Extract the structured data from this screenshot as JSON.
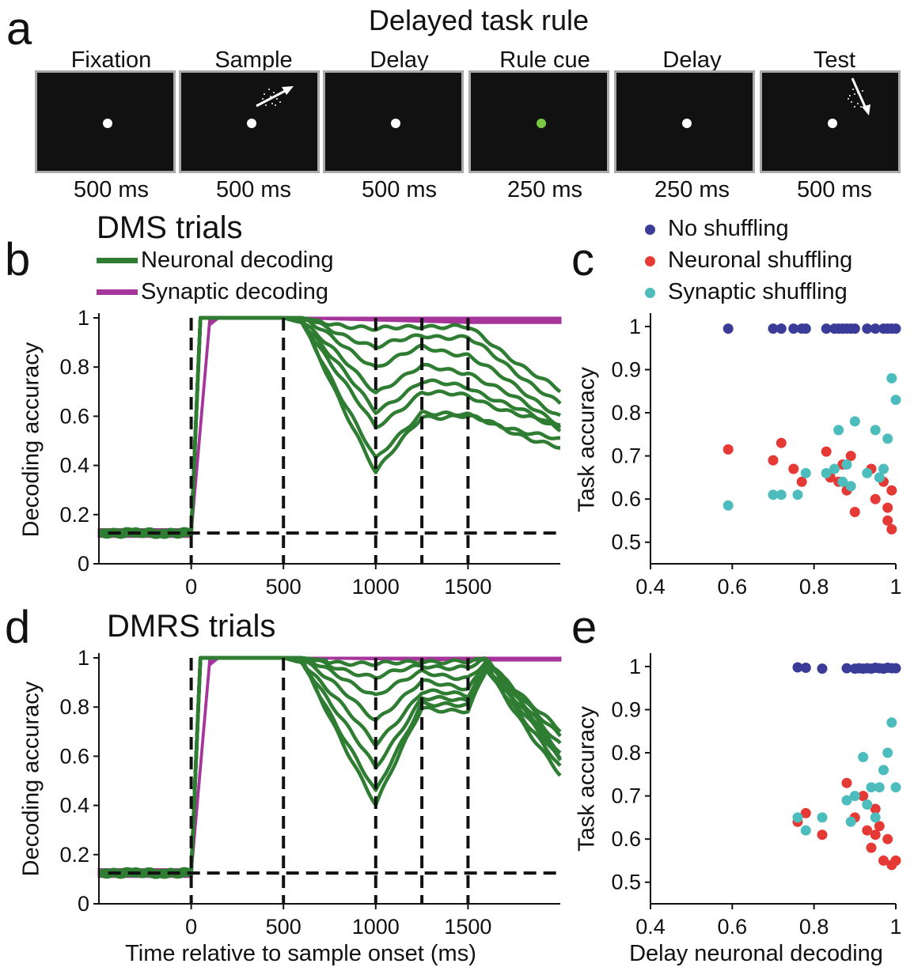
{
  "panel_a": {
    "letter": "a",
    "title": "Delayed task rule",
    "epochs": [
      {
        "name": "Fixation",
        "duration": "500 ms",
        "dot_color": "#ffffff",
        "stimulus": "none"
      },
      {
        "name": "Sample",
        "duration": "500 ms",
        "dot_color": "#ffffff",
        "stimulus": "motion-up-right"
      },
      {
        "name": "Delay",
        "duration": "500 ms",
        "dot_color": "#ffffff",
        "stimulus": "none"
      },
      {
        "name": "Rule cue",
        "duration": "250 ms",
        "dot_color": "#7ac943",
        "stimulus": "none"
      },
      {
        "name": "Delay",
        "duration": "250 ms",
        "dot_color": "#ffffff",
        "stimulus": "none"
      },
      {
        "name": "Test",
        "duration": "500 ms",
        "dot_color": "#ffffff",
        "stimulus": "motion-down-right"
      }
    ]
  },
  "colors": {
    "neuronal": "#2e7d32",
    "synaptic": "#a6359b",
    "no_shuffling": "#3b3b98",
    "neuronal_shuffling": "#e53935",
    "synaptic_shuffling": "#4cbcbc",
    "dashed": "#111111"
  },
  "panel_b": {
    "letter": "b",
    "title": "DMS trials",
    "legend": [
      "Neuronal decoding",
      "Synaptic decoding"
    ],
    "ylabel": "Decoding accuracy"
  },
  "panel_c": {
    "letter": "c",
    "legend": [
      "No shuffling",
      "Neuronal shuffling",
      "Synaptic shuffling"
    ],
    "ylabel": "Task accuracy"
  },
  "panel_d": {
    "letter": "d",
    "title": "DMRS trials",
    "ylabel": "Decoding accuracy",
    "xlabel": "Time relative to sample onset (ms)"
  },
  "panel_e": {
    "letter": "e",
    "ylabel": "Task accuracy",
    "xlabel": "Delay neuronal decoding"
  },
  "chart_data": [
    {
      "id": "b",
      "type": "line",
      "title": "DMS trials",
      "xlabel": "",
      "ylabel": "Decoding accuracy",
      "xlim": [
        -500,
        2000
      ],
      "ylim": [
        0,
        1
      ],
      "xticks": [
        0,
        500,
        1000,
        1500
      ],
      "yticks": [
        0,
        0.2,
        0.4,
        0.6,
        0.8,
        1
      ],
      "chance_level": 0.125,
      "epoch_boundaries": [
        0,
        500,
        1000,
        1250,
        1500
      ],
      "series": [
        {
          "name": "Neuronal decoding",
          "kind": "bundle",
          "x": [
            -500,
            0,
            50,
            100,
            500,
            600,
            1000,
            1250,
            1500,
            2000
          ],
          "curves": [
            [
              0.13,
              0.13,
              1,
              1,
              1,
              0.98,
              0.37,
              0.6,
              0.6,
              0.47
            ],
            [
              0.12,
              0.12,
              1,
              1,
              1,
              0.98,
              0.42,
              0.62,
              0.6,
              0.5
            ],
            [
              0.13,
              0.13,
              1,
              1,
              1,
              0.99,
              0.55,
              0.7,
              0.68,
              0.55
            ],
            [
              0.12,
              0.12,
              1,
              1,
              1,
              0.99,
              0.62,
              0.74,
              0.72,
              0.55
            ],
            [
              0.13,
              0.13,
              1,
              1,
              1,
              0.99,
              0.7,
              0.8,
              0.78,
              0.57
            ],
            [
              0.12,
              0.12,
              1,
              1,
              1,
              1,
              0.8,
              0.88,
              0.85,
              0.6
            ],
            [
              0.13,
              0.13,
              1,
              1,
              1,
              1,
              0.88,
              0.93,
              0.92,
              0.65
            ],
            [
              0.12,
              0.12,
              1,
              1,
              1,
              1,
              0.95,
              0.97,
              0.96,
              0.7
            ]
          ]
        },
        {
          "name": "Synaptic decoding",
          "kind": "band",
          "x": [
            -500,
            0,
            100,
            150,
            500,
            1500,
            2000
          ],
          "lower": [
            0.11,
            0.11,
            0.97,
            1,
            1,
            0.98,
            0.98
          ],
          "upper": [
            0.14,
            0.14,
            1,
            1,
            1,
            1,
            1
          ]
        }
      ]
    },
    {
      "id": "c",
      "type": "scatter",
      "xlabel": "",
      "ylabel": "Task accuracy",
      "xlim": [
        0.4,
        1
      ],
      "ylim": [
        0.45,
        1.02
      ],
      "xticks": [
        0.4,
        0.6,
        0.8,
        1
      ],
      "yticks": [
        0.5,
        0.6,
        0.7,
        0.8,
        0.9,
        1
      ],
      "series": [
        {
          "name": "No shuffling",
          "x": [
            0.59,
            0.7,
            0.72,
            0.75,
            0.77,
            0.78,
            0.83,
            0.85,
            0.86,
            0.87,
            0.88,
            0.89,
            0.9,
            0.93,
            0.95,
            0.97,
            0.98,
            0.99,
            1.0
          ],
          "y": [
            0.995,
            0.995,
            0.995,
            0.995,
            0.995,
            0.995,
            0.995,
            0.995,
            0.995,
            0.995,
            0.995,
            0.995,
            0.995,
            0.995,
            0.995,
            0.995,
            0.995,
            0.995,
            0.995
          ]
        },
        {
          "name": "Neuronal shuffling",
          "x": [
            0.59,
            0.7,
            0.72,
            0.75,
            0.77,
            0.83,
            0.84,
            0.86,
            0.87,
            0.88,
            0.89,
            0.9,
            0.94,
            0.95,
            0.97,
            0.98,
            0.98,
            0.99,
            0.99
          ],
          "y": [
            0.715,
            0.69,
            0.73,
            0.67,
            0.64,
            0.71,
            0.65,
            0.64,
            0.68,
            0.62,
            0.7,
            0.57,
            0.67,
            0.6,
            0.64,
            0.58,
            0.55,
            0.53,
            0.62
          ]
        },
        {
          "name": "Synaptic shuffling",
          "x": [
            0.59,
            0.7,
            0.72,
            0.76,
            0.78,
            0.83,
            0.85,
            0.86,
            0.87,
            0.88,
            0.89,
            0.9,
            0.93,
            0.95,
            0.96,
            0.97,
            0.98,
            0.99,
            1.0
          ],
          "y": [
            0.585,
            0.61,
            0.61,
            0.61,
            0.66,
            0.66,
            0.67,
            0.76,
            0.64,
            0.68,
            0.63,
            0.78,
            0.66,
            0.76,
            0.65,
            0.67,
            0.74,
            0.88,
            0.83
          ]
        }
      ]
    },
    {
      "id": "d",
      "type": "line",
      "title": "DMRS trials",
      "xlabel": "Time relative to sample onset (ms)",
      "ylabel": "Decoding accuracy",
      "xlim": [
        -500,
        2000
      ],
      "ylim": [
        0,
        1
      ],
      "xticks": [
        0,
        500,
        1000,
        1500
      ],
      "yticks": [
        0,
        0.2,
        0.4,
        0.6,
        0.8,
        1
      ],
      "chance_level": 0.125,
      "epoch_boundaries": [
        0,
        500,
        1000,
        1250,
        1500
      ],
      "series": [
        {
          "name": "Neuronal decoding",
          "kind": "bundle",
          "x": [
            -500,
            0,
            50,
            100,
            500,
            600,
            1000,
            1250,
            1500,
            1600,
            2000
          ],
          "curves": [
            [
              0.13,
              0.13,
              1,
              1,
              1,
              0.98,
              0.4,
              0.8,
              0.78,
              0.95,
              0.52
            ],
            [
              0.12,
              0.12,
              1,
              1,
              1,
              0.98,
              0.45,
              0.82,
              0.8,
              0.96,
              0.55
            ],
            [
              0.13,
              0.13,
              1,
              1,
              1,
              0.99,
              0.55,
              0.84,
              0.82,
              0.97,
              0.58
            ],
            [
              0.12,
              0.12,
              1,
              1,
              1,
              0.99,
              0.65,
              0.86,
              0.85,
              0.97,
              0.6
            ],
            [
              0.13,
              0.13,
              1,
              1,
              1,
              1,
              0.75,
              0.9,
              0.88,
              0.98,
              0.62
            ],
            [
              0.12,
              0.12,
              1,
              1,
              1,
              1,
              0.85,
              0.94,
              0.92,
              0.98,
              0.65
            ],
            [
              0.13,
              0.13,
              1,
              1,
              1,
              1,
              0.92,
              0.97,
              0.96,
              0.99,
              0.68
            ],
            [
              0.12,
              0.12,
              1,
              1,
              1,
              1,
              0.97,
              0.99,
              0.98,
              0.99,
              0.7
            ]
          ]
        },
        {
          "name": "Synaptic decoding",
          "kind": "band",
          "x": [
            -500,
            0,
            100,
            150,
            500,
            1500,
            2000
          ],
          "lower": [
            0.11,
            0.11,
            0.97,
            1,
            1,
            0.99,
            0.99
          ],
          "upper": [
            0.14,
            0.14,
            1,
            1,
            1,
            1,
            1
          ]
        }
      ]
    },
    {
      "id": "e",
      "type": "scatter",
      "xlabel": "Delay neuronal decoding",
      "ylabel": "Task accuracy",
      "xlim": [
        0.4,
        1
      ],
      "ylim": [
        0.45,
        1.02
      ],
      "xticks": [
        0.4,
        0.6,
        0.8,
        1
      ],
      "yticks": [
        0.5,
        0.6,
        0.7,
        0.8,
        0.9,
        1
      ],
      "series": [
        {
          "name": "No shuffling",
          "x": [
            0.76,
            0.78,
            0.82,
            0.88,
            0.9,
            0.91,
            0.92,
            0.93,
            0.94,
            0.95,
            0.96,
            0.97,
            0.98,
            0.99,
            1.0
          ],
          "y": [
            0.998,
            0.997,
            0.995,
            0.996,
            0.995,
            0.996,
            0.995,
            0.996,
            0.995,
            0.997,
            0.996,
            0.995,
            0.997,
            0.996,
            0.996
          ]
        },
        {
          "name": "Neuronal shuffling",
          "x": [
            0.76,
            0.78,
            0.82,
            0.88,
            0.9,
            0.92,
            0.93,
            0.94,
            0.95,
            0.95,
            0.96,
            0.97,
            0.98,
            0.99,
            1.0
          ],
          "y": [
            0.64,
            0.66,
            0.61,
            0.73,
            0.65,
            0.7,
            0.62,
            0.58,
            0.61,
            0.67,
            0.63,
            0.55,
            0.6,
            0.54,
            0.55
          ]
        },
        {
          "name": "Synaptic shuffling",
          "x": [
            0.76,
            0.78,
            0.82,
            0.88,
            0.89,
            0.9,
            0.92,
            0.93,
            0.94,
            0.95,
            0.96,
            0.97,
            0.98,
            0.99,
            1.0
          ],
          "y": [
            0.65,
            0.62,
            0.65,
            0.69,
            0.64,
            0.7,
            0.79,
            0.68,
            0.72,
            0.65,
            0.72,
            0.76,
            0.8,
            0.87,
            0.72
          ]
        }
      ]
    }
  ]
}
